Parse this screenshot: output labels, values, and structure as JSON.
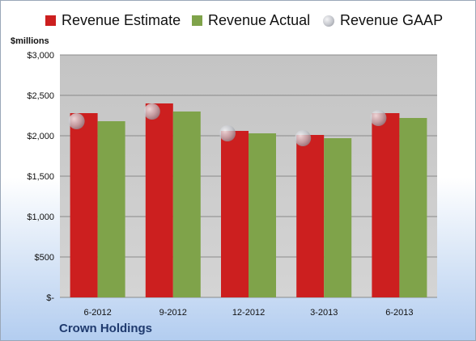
{
  "legend": {
    "estimate": "Revenue Estimate",
    "actual": "Revenue Actual",
    "gaap": "Revenue GAAP"
  },
  "unit_label": "$millions",
  "company": "Crown Holdings",
  "colors": {
    "estimate": "#cc1f1f",
    "actual": "#7fa34a",
    "gaap": "#b5b8c0",
    "plot_bg": "#c7c7c7",
    "grid": "#8a8a8a"
  },
  "chart_data": {
    "type": "bar",
    "categories": [
      "6-2012",
      "9-2012",
      "12-2012",
      "3-2013",
      "6-2013"
    ],
    "series": [
      {
        "name": "Revenue Estimate",
        "values": [
          2280,
          2400,
          2060,
          2010,
          2280
        ]
      },
      {
        "name": "Revenue Actual",
        "values": [
          2180,
          2300,
          2030,
          1970,
          2220
        ]
      },
      {
        "name": "Revenue GAAP",
        "values": [
          2180,
          2300,
          2030,
          1970,
          2220
        ]
      }
    ],
    "ylabel": "$millions",
    "ylim": [
      0,
      3000
    ],
    "yticks": [
      0,
      500,
      1000,
      1500,
      2000,
      2500,
      3000
    ],
    "ytick_labels": [
      "$-",
      "$500",
      "$1,000",
      "$1,500",
      "$2,000",
      "$2,500",
      "$3,000"
    ],
    "grid": true,
    "legend_position": "top"
  }
}
